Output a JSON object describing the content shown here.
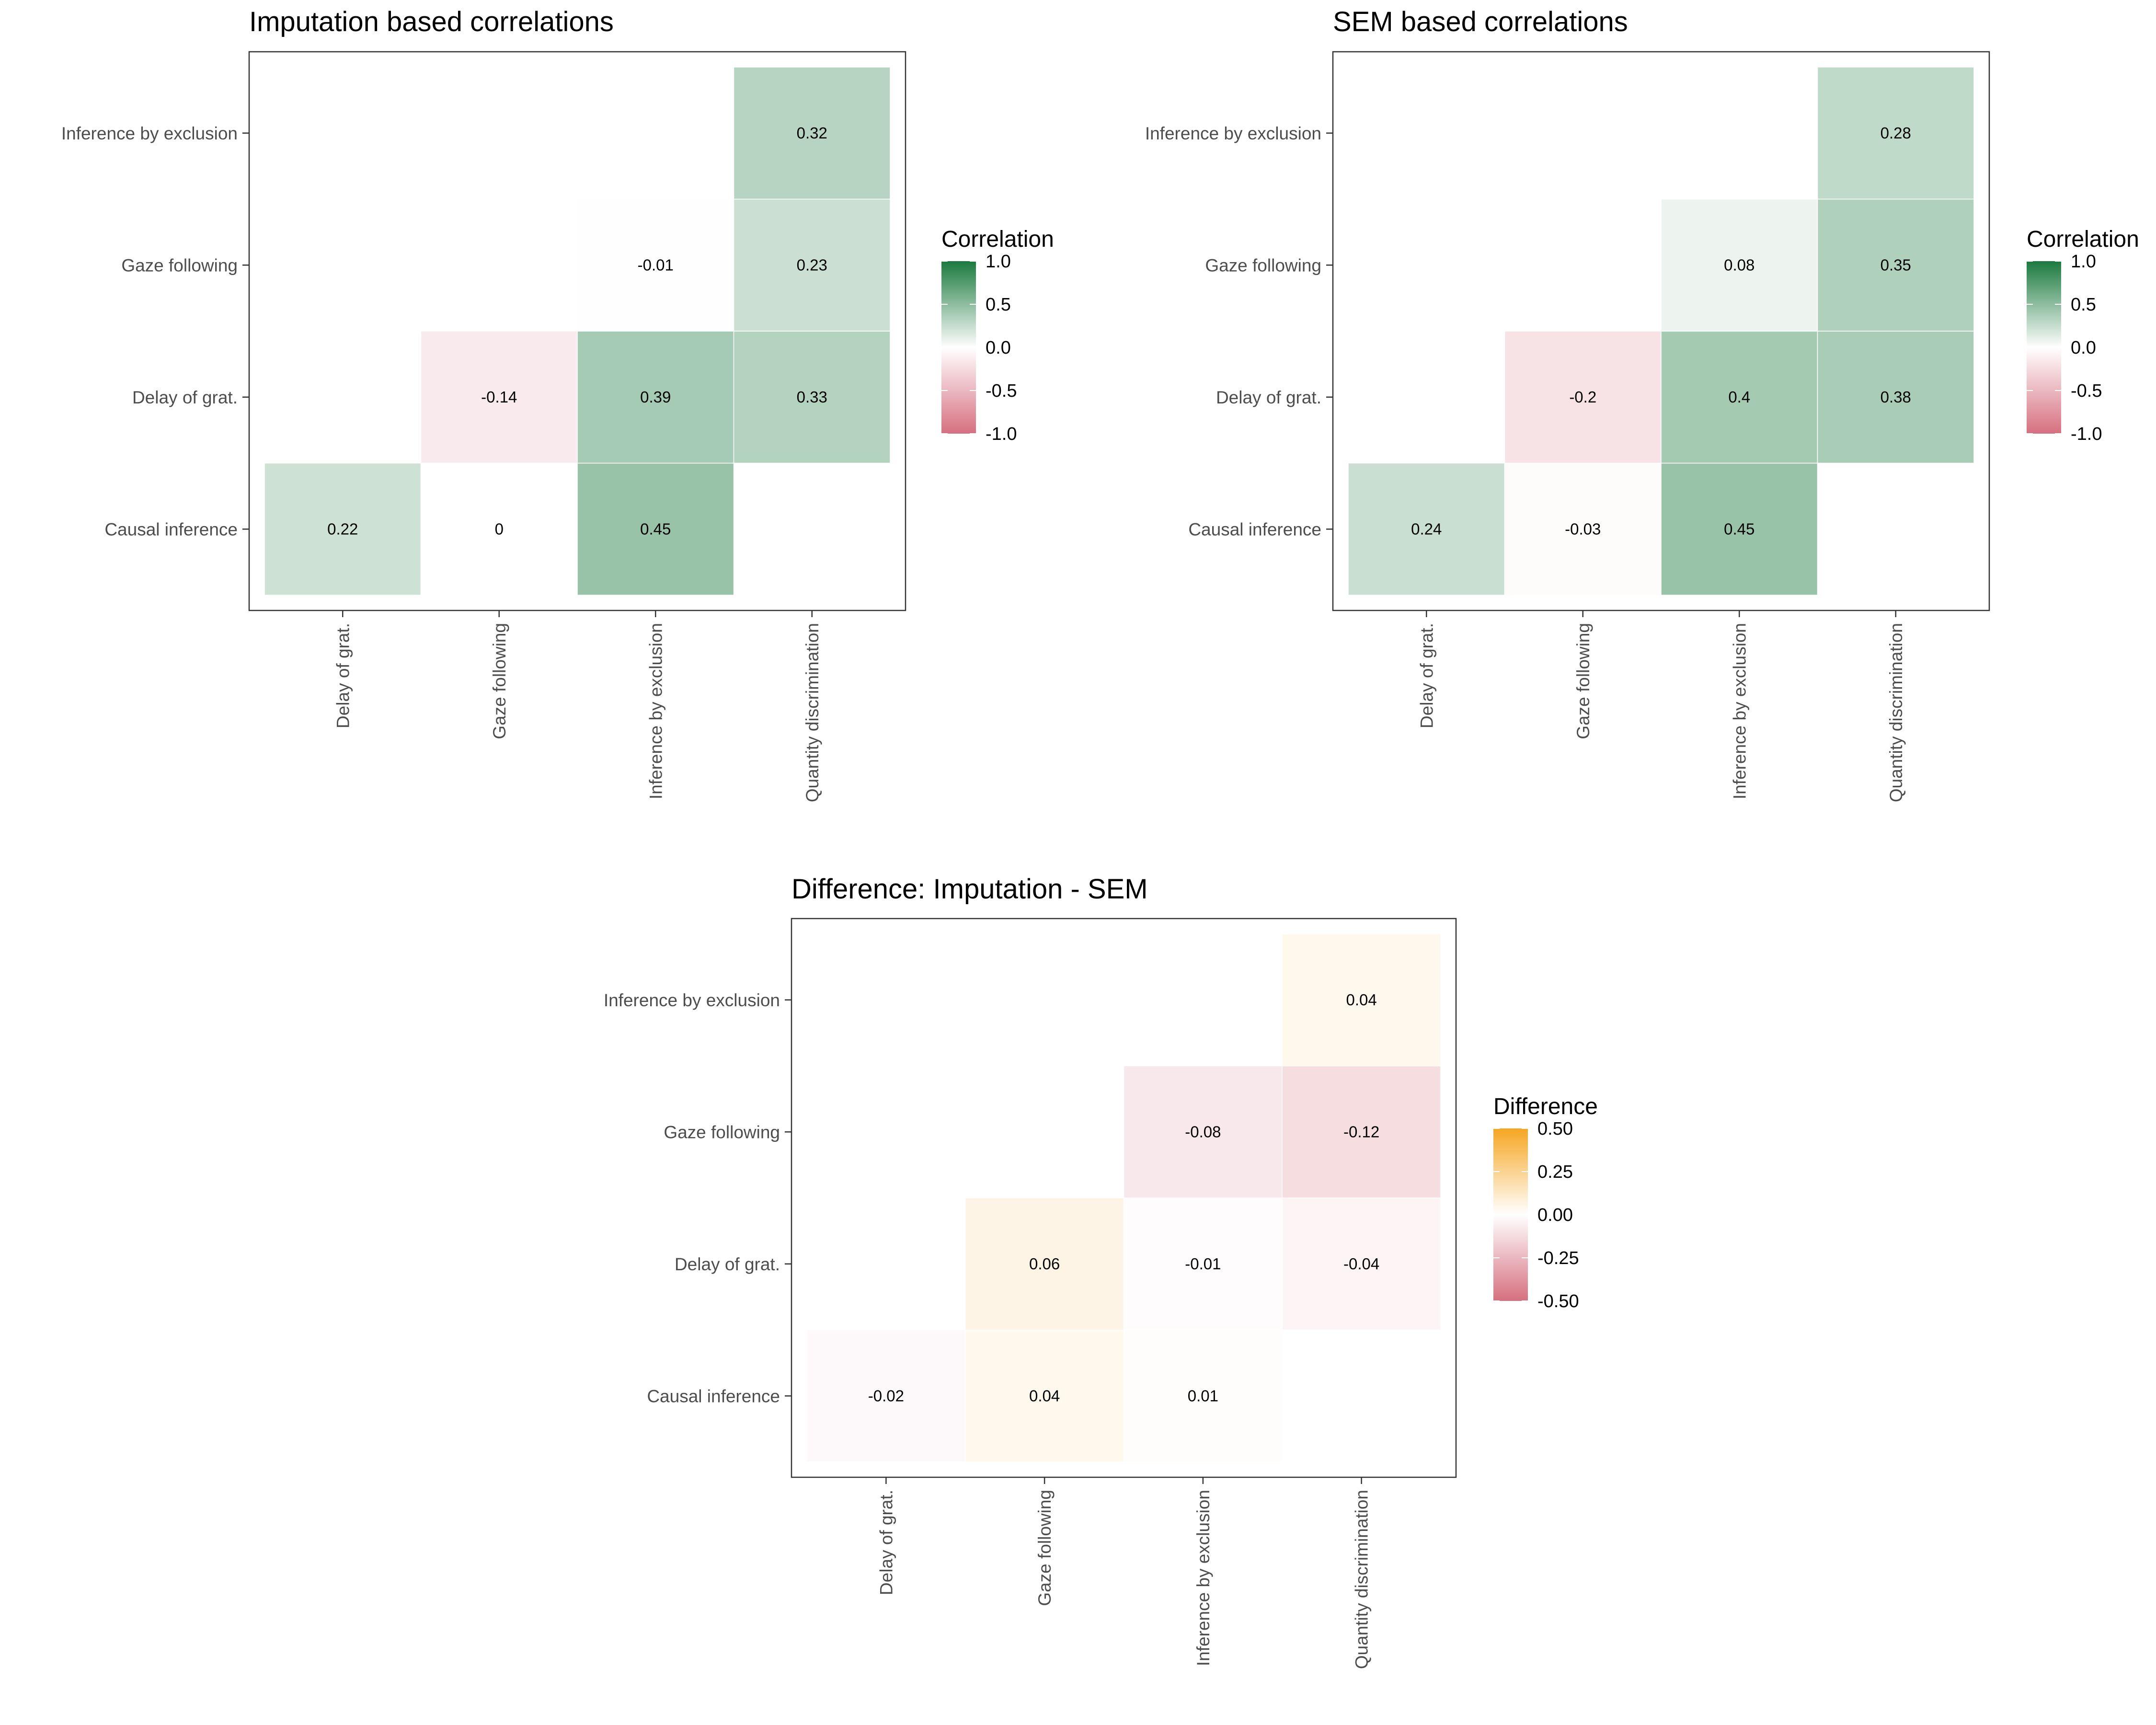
{
  "chart_data": [
    {
      "type": "heatmap",
      "title": "Imputation based correlations",
      "x_categories": [
        "Delay of grat.",
        "Gaze following",
        "Inference by exclusion",
        "Quantity discrimination"
      ],
      "y_categories": [
        "Causal inference",
        "Delay of grat.",
        "Gaze following",
        "Inference by exclusion"
      ],
      "cells": [
        {
          "x": "Delay of grat.",
          "y": "Causal inference",
          "value": 0.22,
          "label": "0.22"
        },
        {
          "x": "Gaze following",
          "y": "Causal inference",
          "value": 0,
          "label": "0"
        },
        {
          "x": "Inference by exclusion",
          "y": "Causal inference",
          "value": 0.45,
          "label": "0.45"
        },
        {
          "x": "Gaze following",
          "y": "Delay of grat.",
          "value": -0.14,
          "label": "-0.14"
        },
        {
          "x": "Inference by exclusion",
          "y": "Delay of grat.",
          "value": 0.39,
          "label": "0.39"
        },
        {
          "x": "Quantity discrimination",
          "y": "Delay of grat.",
          "value": 0.33,
          "label": "0.33"
        },
        {
          "x": "Inference by exclusion",
          "y": "Gaze following",
          "value": -0.01,
          "label": "-0.01"
        },
        {
          "x": "Quantity discrimination",
          "y": "Gaze following",
          "value": 0.23,
          "label": "0.23"
        },
        {
          "x": "Quantity discrimination",
          "y": "Inference by exclusion",
          "value": 0.32,
          "label": "0.32"
        }
      ],
      "legend": {
        "title": "Correlation",
        "position": "right",
        "range": [
          -1,
          1
        ],
        "ticks": [
          1,
          0.5,
          0,
          -0.5,
          -1
        ],
        "tick_labels": [
          "1.0",
          "0.5",
          "0.0",
          "-0.5",
          "-1.0"
        ],
        "colors": {
          "low": "#d6707f",
          "mid": "#ffffff",
          "high": "#1b7a3e"
        }
      }
    },
    {
      "type": "heatmap",
      "title": "SEM based correlations",
      "x_categories": [
        "Delay of grat.",
        "Gaze following",
        "Inference by exclusion",
        "Quantity discrimination"
      ],
      "y_categories": [
        "Causal inference",
        "Delay of grat.",
        "Gaze following",
        "Inference by exclusion"
      ],
      "cells": [
        {
          "x": "Delay of grat.",
          "y": "Causal inference",
          "value": 0.24,
          "label": "0.24"
        },
        {
          "x": "Gaze following",
          "y": "Causal inference",
          "value": -0.03,
          "label": "-0.03"
        },
        {
          "x": "Inference by exclusion",
          "y": "Causal inference",
          "value": 0.45,
          "label": "0.45"
        },
        {
          "x": "Gaze following",
          "y": "Delay of grat.",
          "value": -0.2,
          "label": "-0.2"
        },
        {
          "x": "Inference by exclusion",
          "y": "Delay of grat.",
          "value": 0.4,
          "label": "0.4"
        },
        {
          "x": "Quantity discrimination",
          "y": "Delay of grat.",
          "value": 0.38,
          "label": "0.38"
        },
        {
          "x": "Inference by exclusion",
          "y": "Gaze following",
          "value": 0.08,
          "label": "0.08"
        },
        {
          "x": "Quantity discrimination",
          "y": "Gaze following",
          "value": 0.35,
          "label": "0.35"
        },
        {
          "x": "Quantity discrimination",
          "y": "Inference by exclusion",
          "value": 0.28,
          "label": "0.28"
        }
      ],
      "legend": {
        "title": "Correlation",
        "position": "right",
        "range": [
          -1,
          1
        ],
        "ticks": [
          1,
          0.5,
          0,
          -0.5,
          -1
        ],
        "tick_labels": [
          "1.0",
          "0.5",
          "0.0",
          "-0.5",
          "-1.0"
        ],
        "colors": {
          "low": "#d6707f",
          "mid": "#ffffff",
          "high": "#1b7a3e"
        }
      }
    },
    {
      "type": "heatmap",
      "title": "Difference: Imputation - SEM",
      "x_categories": [
        "Delay of grat.",
        "Gaze following",
        "Inference by exclusion",
        "Quantity discrimination"
      ],
      "y_categories": [
        "Causal inference",
        "Delay of grat.",
        "Gaze following",
        "Inference by exclusion"
      ],
      "cells": [
        {
          "x": "Delay of grat.",
          "y": "Causal inference",
          "value": -0.02,
          "label": "-0.02"
        },
        {
          "x": "Gaze following",
          "y": "Causal inference",
          "value": 0.04,
          "label": "0.04"
        },
        {
          "x": "Inference by exclusion",
          "y": "Causal inference",
          "value": 0.01,
          "label": "0.01"
        },
        {
          "x": "Gaze following",
          "y": "Delay of grat.",
          "value": 0.06,
          "label": "0.06"
        },
        {
          "x": "Inference by exclusion",
          "y": "Delay of grat.",
          "value": -0.01,
          "label": "-0.01"
        },
        {
          "x": "Quantity discrimination",
          "y": "Delay of grat.",
          "value": -0.04,
          "label": "-0.04"
        },
        {
          "x": "Inference by exclusion",
          "y": "Gaze following",
          "value": -0.08,
          "label": "-0.08"
        },
        {
          "x": "Quantity discrimination",
          "y": "Gaze following",
          "value": -0.12,
          "label": "-0.12"
        },
        {
          "x": "Quantity discrimination",
          "y": "Inference by exclusion",
          "value": 0.04,
          "label": "0.04"
        }
      ],
      "legend": {
        "title": "Difference",
        "position": "right",
        "range": [
          -0.5,
          0.5
        ],
        "ticks": [
          0.5,
          0.25,
          0,
          -0.25,
          -0.5
        ],
        "tick_labels": [
          "0.50",
          "0.25",
          "0.00",
          "-0.25",
          "-0.50"
        ],
        "colors": {
          "low": "#d6707f",
          "mid": "#ffffff",
          "high": "#f6a623"
        }
      }
    }
  ]
}
